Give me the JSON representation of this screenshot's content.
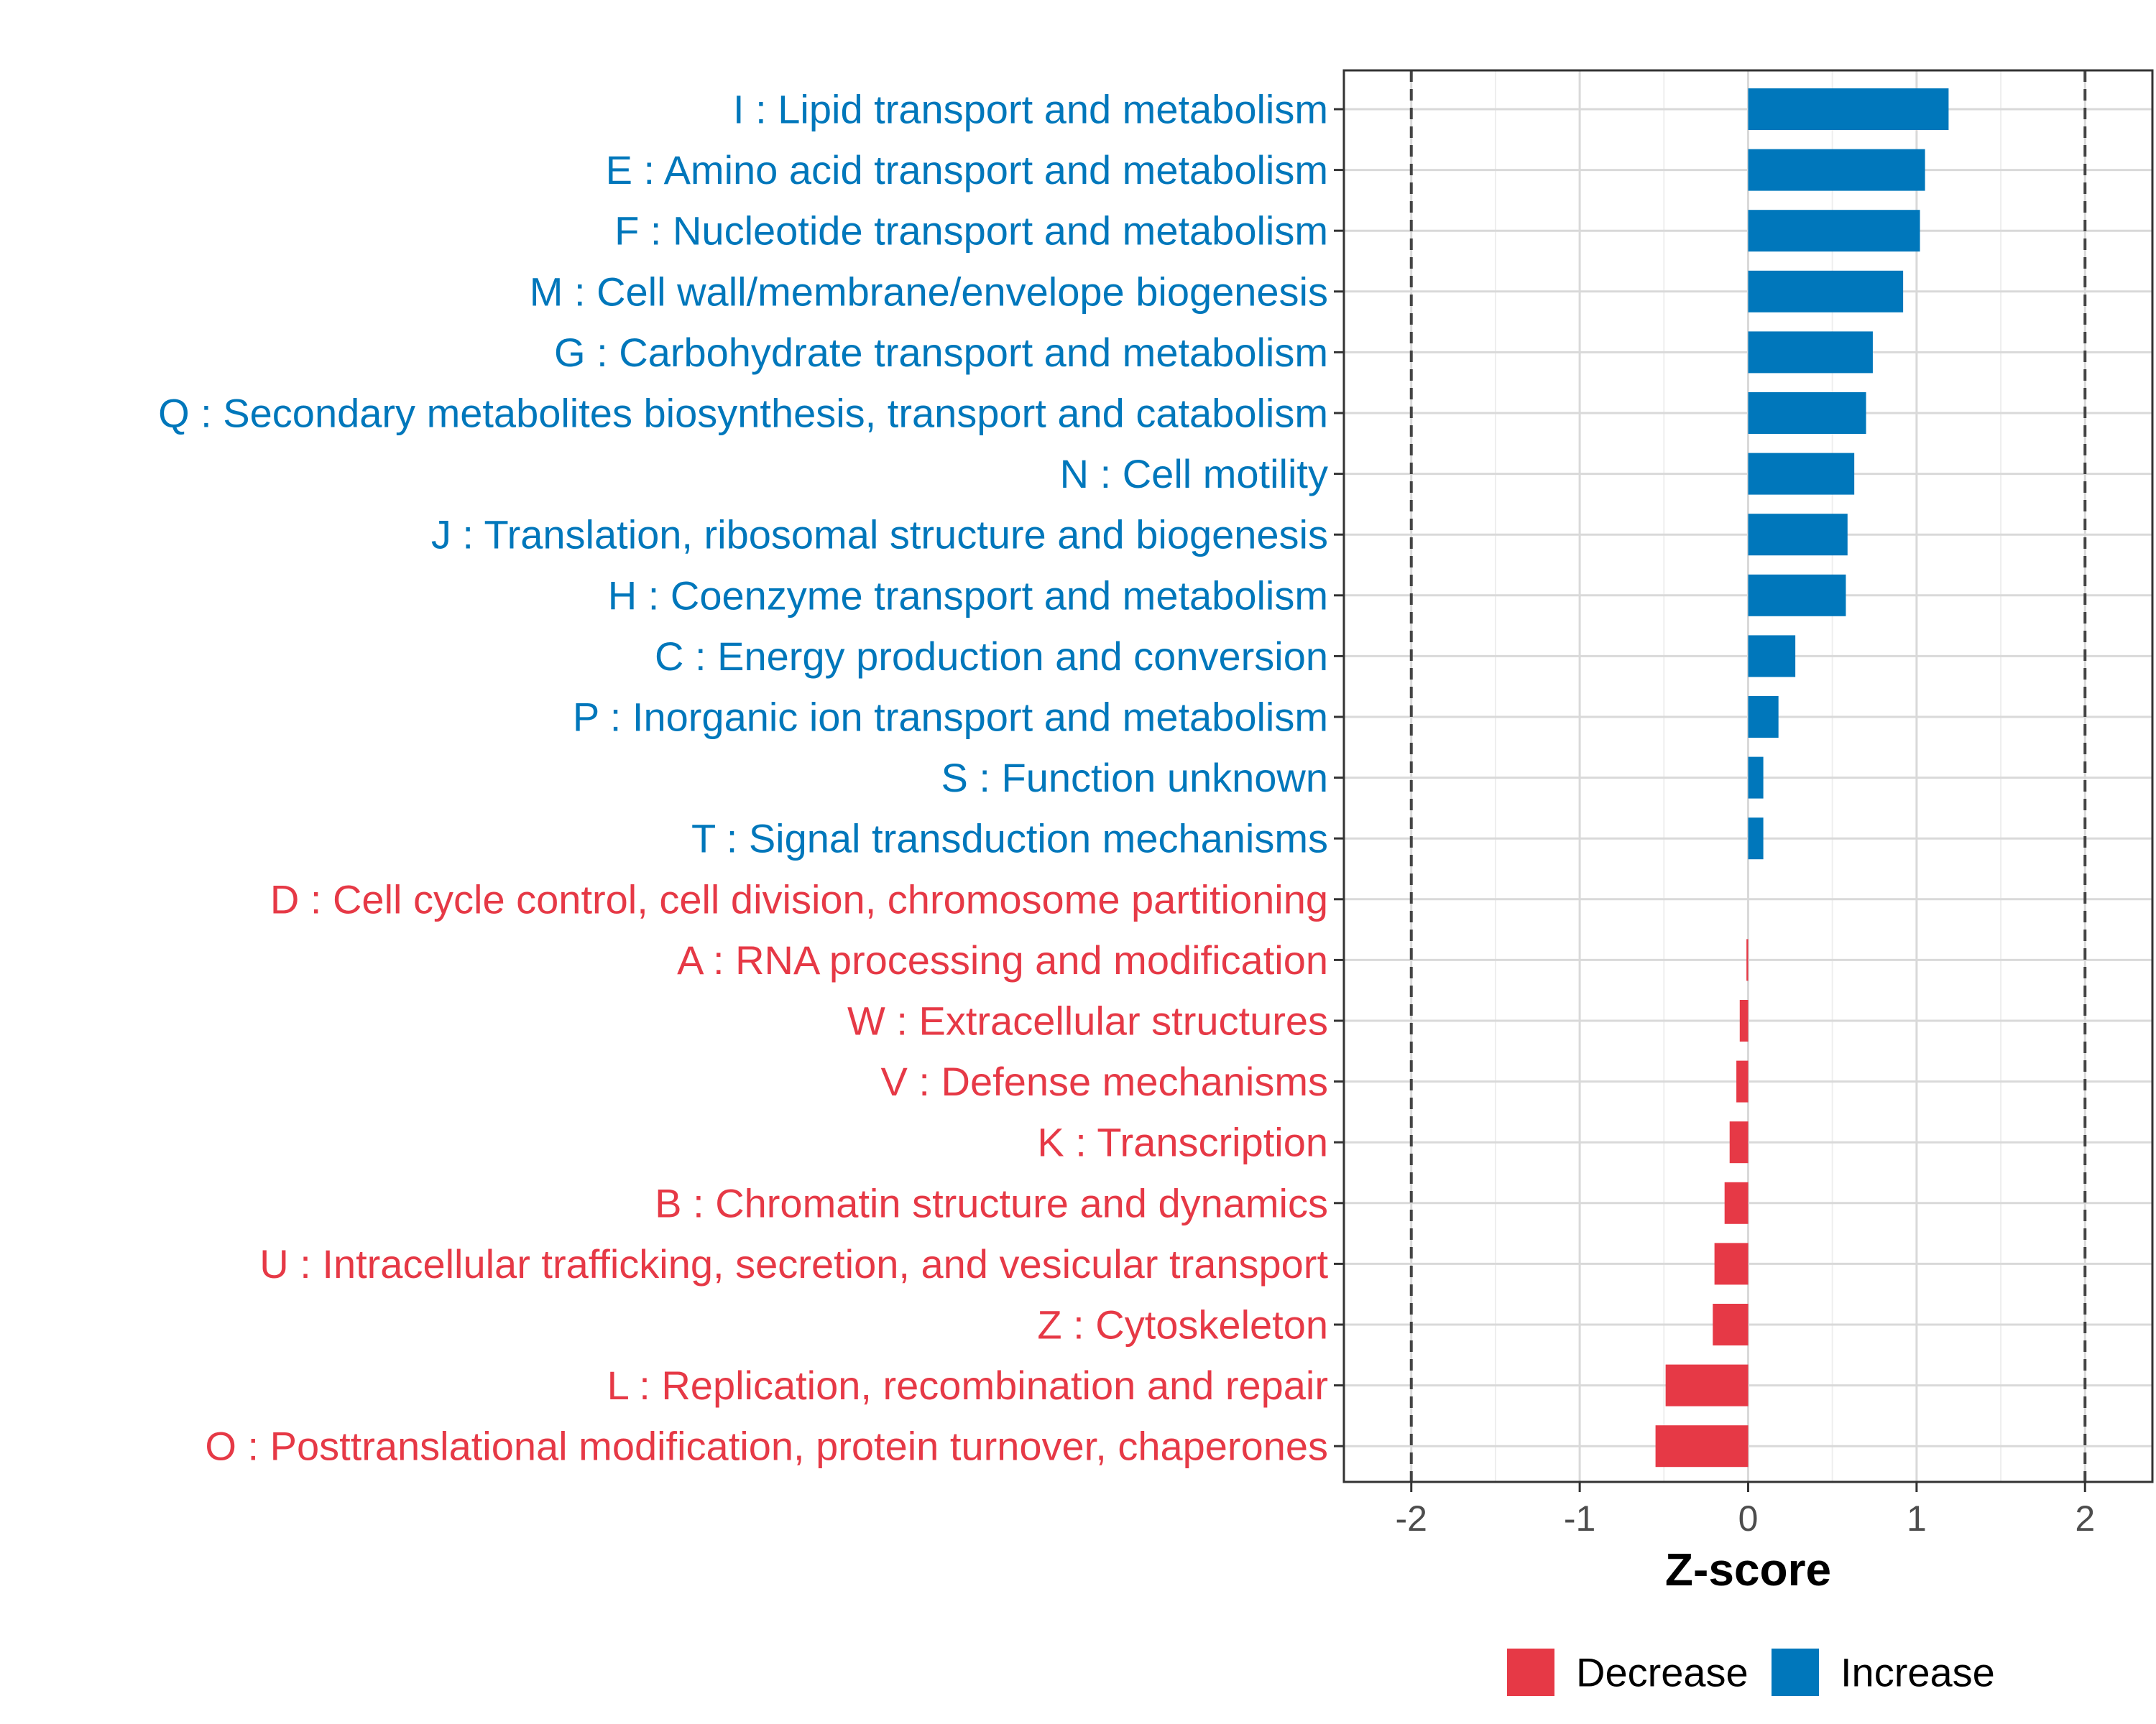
{
  "chart_data": {
    "type": "bar",
    "orientation": "horizontal",
    "categories": [
      "I : Lipid transport and metabolism",
      "E : Amino acid transport and metabolism",
      "F : Nucleotide transport and metabolism",
      "M : Cell wall/membrane/envelope biogenesis",
      "G : Carbohydrate transport and metabolism",
      "Q : Secondary metabolites biosynthesis, transport and catabolism",
      "N : Cell motility",
      "J : Translation, ribosomal structure and biogenesis",
      "H : Coenzyme transport and metabolism",
      "C : Energy production and conversion",
      "P : Inorganic ion transport and metabolism",
      "S : Function unknown",
      "T : Signal transduction mechanisms",
      "D : Cell cycle control, cell division, chromosome partitioning",
      "A : RNA processing and modification",
      "W : Extracellular structures",
      "V : Defense mechanisms",
      "K : Transcription",
      "B : Chromatin structure and dynamics",
      "U : Intracellular trafficking, secretion, and vesicular transport",
      "Z : Cytoskeleton",
      "L : Replication, recombination and repair",
      "O : Posttranslational modification, protein turnover, chaperones"
    ],
    "values": [
      1.19,
      1.05,
      1.02,
      0.92,
      0.74,
      0.7,
      0.63,
      0.59,
      0.58,
      0.28,
      0.18,
      0.09,
      0.09,
      0.0,
      -0.01,
      -0.05,
      -0.07,
      -0.11,
      -0.14,
      -0.2,
      -0.21,
      -0.49,
      -0.55
    ],
    "groups": [
      "Increase",
      "Increase",
      "Increase",
      "Increase",
      "Increase",
      "Increase",
      "Increase",
      "Increase",
      "Increase",
      "Increase",
      "Increase",
      "Increase",
      "Increase",
      "Decrease",
      "Decrease",
      "Decrease",
      "Decrease",
      "Decrease",
      "Decrease",
      "Decrease",
      "Decrease",
      "Decrease",
      "Decrease"
    ],
    "xlabel": "Z-score",
    "xlim": [
      -2.4,
      2.4
    ],
    "xticks": [
      -2,
      -1,
      0,
      1,
      2
    ],
    "xtick_labels": [
      "-2",
      "-1",
      "0",
      "1",
      "2"
    ],
    "reference_lines": [
      -2,
      2
    ],
    "grid": true,
    "legend": {
      "position": "bottom",
      "entries": [
        {
          "label": "Decrease",
          "color": "#E63946"
        },
        {
          "label": "Increase",
          "color": "#0077BB"
        }
      ]
    },
    "colors": {
      "Decrease": "#E63946",
      "Increase": "#0077BB"
    }
  }
}
